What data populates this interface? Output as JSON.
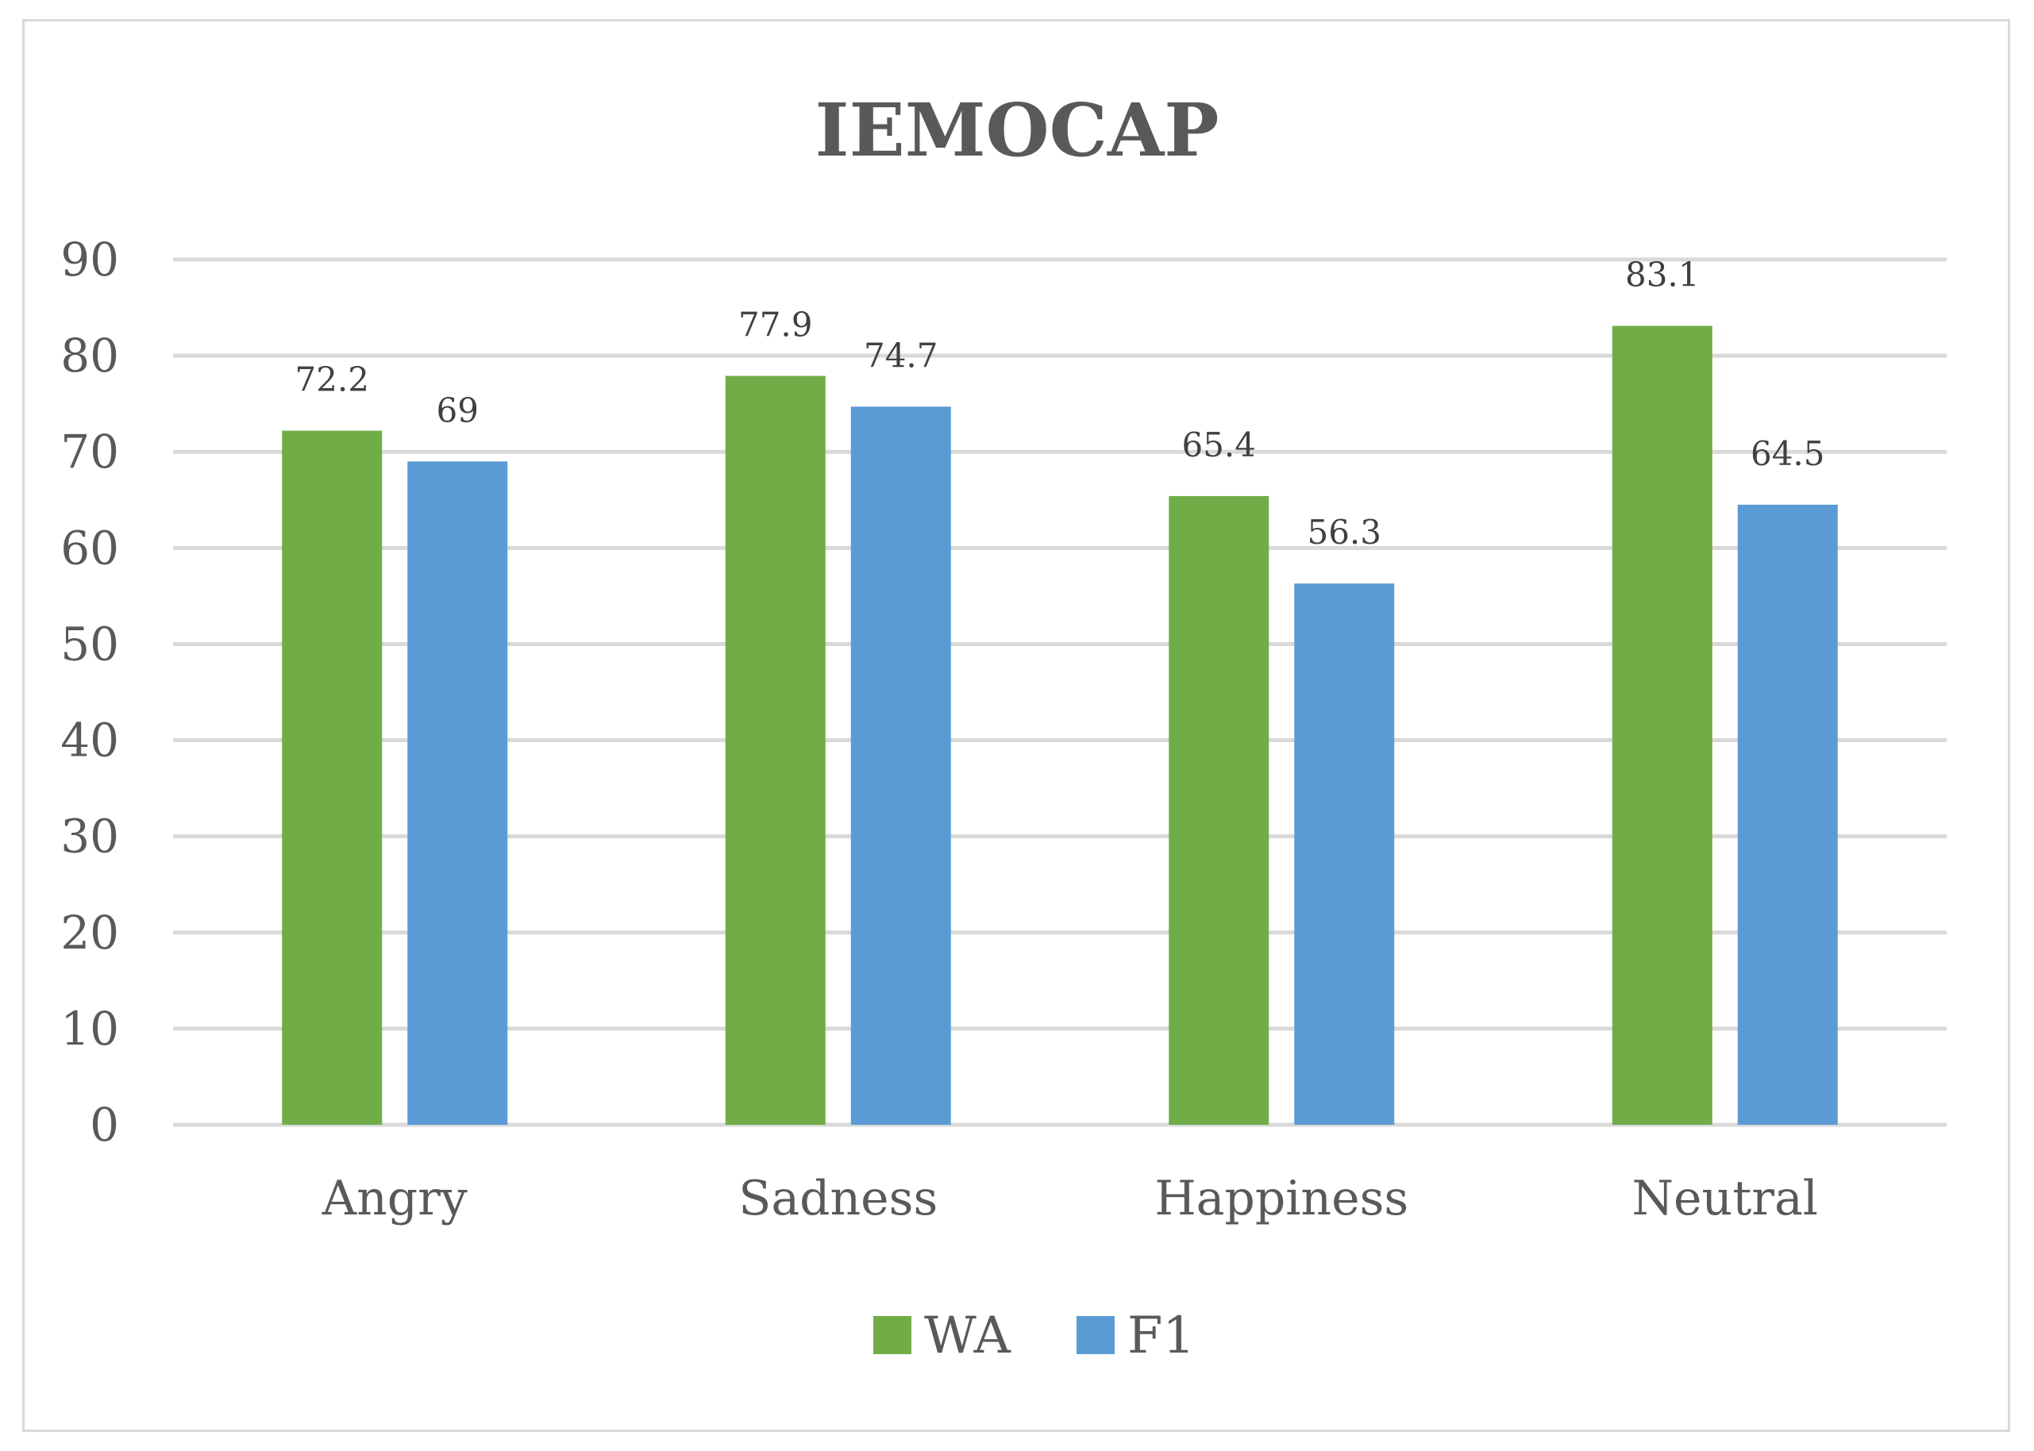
{
  "chart_data": {
    "type": "bar",
    "title": "IEMOCAP",
    "categories": [
      "Angry",
      "Sadness",
      "Happiness",
      "Neutral"
    ],
    "series": [
      {
        "name": "WA",
        "color": "#70ad47",
        "values": [
          72.2,
          77.9,
          65.4,
          83.1
        ],
        "labels": [
          "72.2",
          "77.9",
          "65.4",
          "83.1"
        ]
      },
      {
        "name": "F1",
        "color": "#5b9bd5",
        "values": [
          69,
          74.7,
          56.3,
          64.5
        ],
        "labels": [
          "69",
          "74.7",
          "56.3",
          "64.5"
        ]
      }
    ],
    "xlabel": "",
    "ylabel": "",
    "ylim": [
      0,
      90
    ],
    "yticks": [
      0,
      10,
      20,
      30,
      40,
      50,
      60,
      70,
      80,
      90
    ],
    "ytick_labels": [
      "0",
      "10",
      "20",
      "30",
      "40",
      "50",
      "60",
      "70",
      "80",
      "90"
    ],
    "grid": true,
    "legend_position": "bottom"
  }
}
